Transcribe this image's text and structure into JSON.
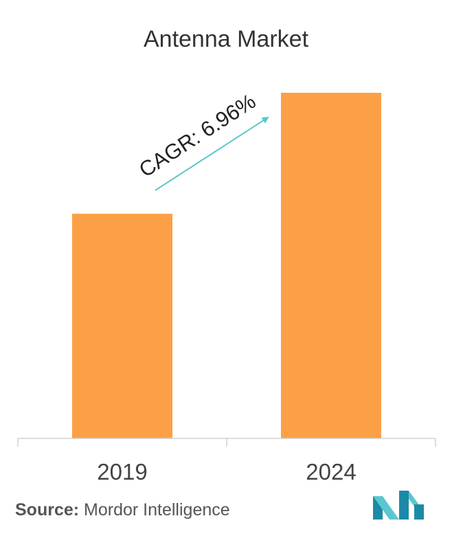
{
  "title": "Antenna Market",
  "chart_data": {
    "type": "bar",
    "categories": [
      "2019",
      "2024"
    ],
    "values": [
      65,
      100
    ],
    "ylim": [
      0,
      100
    ],
    "grid": false,
    "bar_color": "#FBA046",
    "annotation": {
      "text": "CAGR: 6.96%",
      "arrow_color": "#5BC6C9"
    }
  },
  "source": {
    "label": "Source:",
    "text": " Mordor Intelligence"
  },
  "logo": {
    "icon": "mordor-intelligence-logo",
    "colors": [
      "#1C8AA6",
      "#5CC6D0"
    ]
  }
}
